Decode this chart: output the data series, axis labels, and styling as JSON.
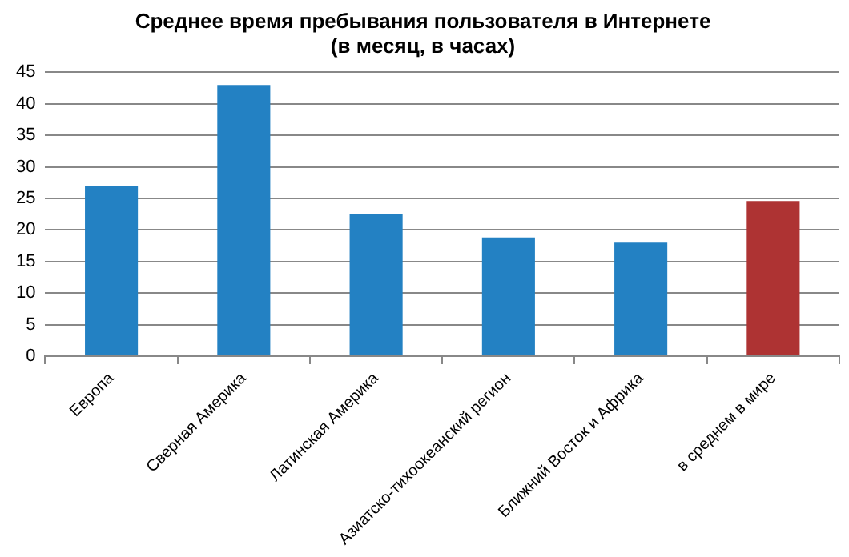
{
  "chart_data": {
    "type": "bar",
    "title": [
      "Среднее время пребывания пользователя в Интернете",
      "(в месяц, в часах)"
    ],
    "categories": [
      "Европа",
      "Сверная Америка",
      "Латинская Америка",
      "Азиатско-тихоокеанский регион",
      "Ближний Восток и Африка",
      "в среднем в мире"
    ],
    "values": [
      26.9,
      43.0,
      22.5,
      18.8,
      18.0,
      24.6
    ],
    "colors": [
      "#2381c3",
      "#2381c3",
      "#2381c3",
      "#2381c3",
      "#2381c3",
      "#ae3333"
    ],
    "ylim": [
      0,
      45
    ],
    "yticks": [
      0,
      5,
      10,
      15,
      20,
      25,
      30,
      35,
      40,
      45
    ],
    "grid": "y",
    "legend": false
  }
}
